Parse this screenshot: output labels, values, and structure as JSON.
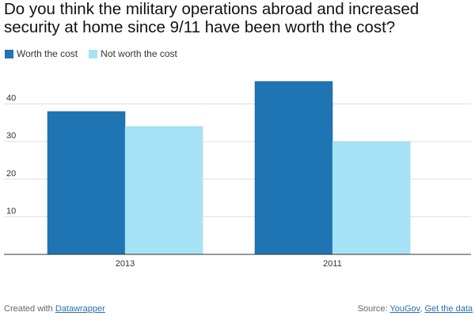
{
  "title": "Do you think the military operations abroad and increased security at home since 9/11 have been worth the cost?",
  "colors": {
    "worth": "#1f74b3",
    "not_worth": "#a7e3f6",
    "grid": "#dddddd",
    "axis": "#333333"
  },
  "chart_data": {
    "type": "bar",
    "title": "Do you think the military operations abroad and increased security at home since 9/11 have been worth the cost?",
    "categories": [
      "2013",
      "2011"
    ],
    "series": [
      {
        "name": "Worth the cost",
        "values": [
          38,
          46
        ]
      },
      {
        "name": "Not worth the cost",
        "values": [
          34,
          30
        ]
      }
    ],
    "xlabel": "",
    "ylabel": "",
    "ylim": [
      0,
      50
    ],
    "yticks": [
      10,
      20,
      30,
      40
    ],
    "grid": true,
    "legend": "top-left"
  },
  "footer": {
    "created_prefix": "Created with",
    "created_link": "Datawrapper",
    "source_prefix": "Source:",
    "source_link": "YouGov",
    "separator": ",",
    "data_link": "Get the data"
  }
}
